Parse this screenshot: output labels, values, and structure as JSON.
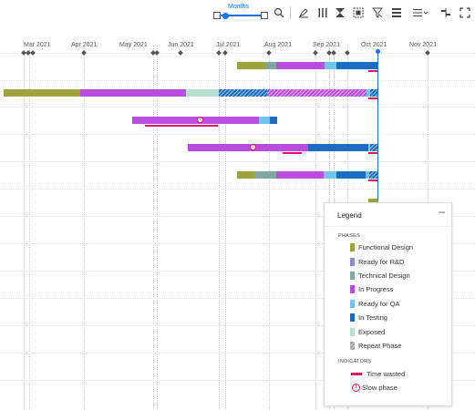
{
  "toolbar": {
    "zoom_label": "Months",
    "icons": [
      "zoom-out-icon",
      "zoom-in-icon",
      "search-icon",
      "highlight-icon",
      "columns-icon",
      "sort-icon",
      "fit-icon",
      "filter-icon",
      "list-icon",
      "group-menu-icon",
      "settings-icon",
      "fullscreen-icon"
    ]
  },
  "timeline": {
    "months": [
      "Mar 2021",
      "Apr 2021",
      "May 2021",
      "Jun 2021",
      "Jul 2021",
      "Aug 2021",
      "Sep 2021",
      "Oct 2021",
      "Nov 2021"
    ]
  },
  "legend": {
    "title": "Legend",
    "minimize": "–",
    "phases_header": "PHASES",
    "indicators_header": "INDICATORS",
    "phases": [
      {
        "label": "Functional Design",
        "color": "#9ea43c"
      },
      {
        "label": "Ready for R&D",
        "color": "#8b8bd6"
      },
      {
        "label": "Technical Design",
        "color": "#7fa9a0"
      },
      {
        "label": "In Progress",
        "color": "#b84de0"
      },
      {
        "label": "Ready for QA",
        "color": "#6ec6ef"
      },
      {
        "label": "In Testing",
        "color": "#1c6dc1"
      },
      {
        "label": "Exposed",
        "color": "#b6e2cf"
      },
      {
        "label": "Repeat Phase",
        "color": "#9e9e9e"
      }
    ],
    "indicators": [
      {
        "label": "Time wasted",
        "color": "#d81b60"
      },
      {
        "label": "Slow phase",
        "color": "#d81b60"
      }
    ]
  }
}
